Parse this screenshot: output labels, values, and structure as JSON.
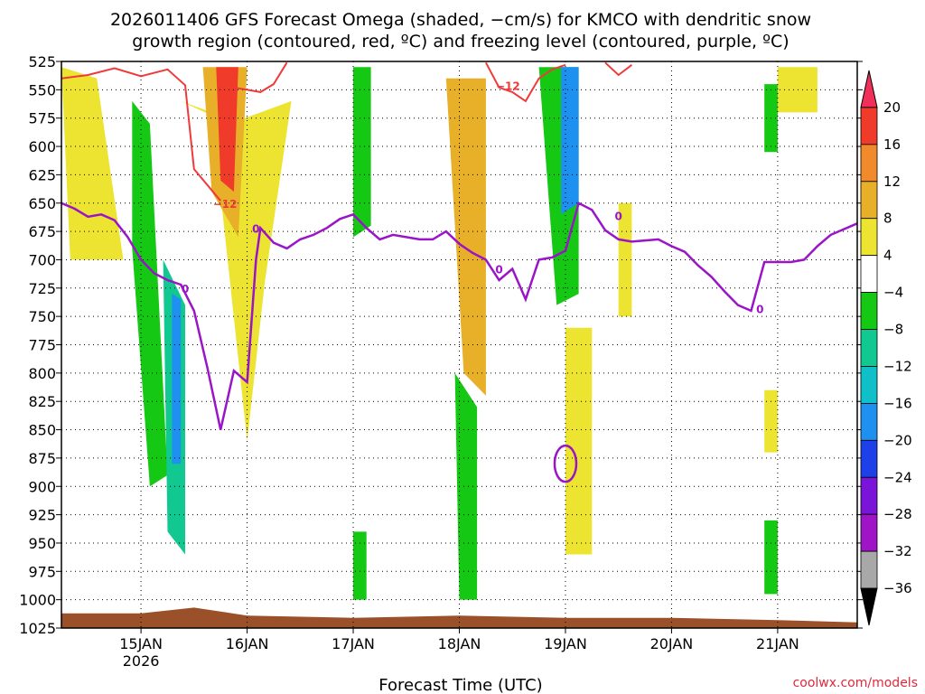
{
  "chart_data": {
    "type": "heatmap",
    "title_lines": [
      "2026011406 GFS Forecast Omega (shaded, −cm/s) for KMCO with dendritic snow",
      "growth region (contoured, red, ºC) and freezing level (contoured, purple, ºC)"
    ],
    "xlabel": "Forecast Time (UTC)",
    "credit": "coolwx.com/models",
    "x_range_days": [
      "2026-01-14T06",
      "2026-01-21T18"
    ],
    "x_ticks": [
      {
        "date": "2026-01-15T00",
        "label": "15JAN",
        "sublabel": "2026"
      },
      {
        "date": "2026-01-16T00",
        "label": "16JAN"
      },
      {
        "date": "2026-01-17T00",
        "label": "17JAN"
      },
      {
        "date": "2026-01-18T00",
        "label": "18JAN"
      },
      {
        "date": "2026-01-19T00",
        "label": "19JAN"
      },
      {
        "date": "2026-01-20T00",
        "label": "20JAN"
      },
      {
        "date": "2026-01-21T00",
        "label": "21JAN"
      }
    ],
    "y_axis_hPa": {
      "range": [
        525,
        1025
      ],
      "inverted": true,
      "ticks": [
        "525",
        "550",
        "575",
        "600",
        "625",
        "650",
        "675",
        "700",
        "725",
        "750",
        "775",
        "800",
        "825",
        "850",
        "875",
        "900",
        "925",
        "950",
        "975",
        "1000",
        "1025"
      ]
    },
    "grid": "dotted",
    "colorbar": {
      "position": "right",
      "labels": [
        "20",
        "16",
        "12",
        "8",
        "4",
        "−4",
        "−8",
        "−12",
        "−16",
        "−20",
        "−24",
        "−28",
        "−32",
        "−36"
      ],
      "colors": [
        "#f0305a",
        "#f03a2a",
        "#f08a2a",
        "#e8b028",
        "#ece430",
        "#ffffff",
        "#14c814",
        "#10c890",
        "#10c0c8",
        "#1e90f0",
        "#1e40e8",
        "#7a14d8",
        "#a014c8",
        "#a8a8a8",
        "#000000"
      ]
    },
    "freezing_level": {
      "label": "0",
      "color": "#9a14c8",
      "points": [
        [
          "2026-01-14T06",
          650
        ],
        [
          "2026-01-14T09",
          655
        ],
        [
          "2026-01-14T12",
          662
        ],
        [
          "2026-01-14T15",
          660
        ],
        [
          "2026-01-14T18",
          665
        ],
        [
          "2026-01-14T21",
          680
        ],
        [
          "2026-01-15T00",
          700
        ],
        [
          "2026-01-15T03",
          712
        ],
        [
          "2026-01-15T06",
          718
        ],
        [
          "2026-01-15T09",
          722
        ],
        [
          "2026-01-15T12",
          745
        ],
        [
          "2026-01-15T15",
          795
        ],
        [
          "2026-01-15T18",
          850
        ],
        [
          "2026-01-15T21",
          798
        ],
        [
          "2026-01-16T00",
          808
        ],
        [
          "2026-01-16T02",
          700
        ],
        [
          "2026-01-16T03",
          672
        ],
        [
          "2026-01-16T06",
          685
        ],
        [
          "2026-01-16T09",
          690
        ],
        [
          "2026-01-16T12",
          682
        ],
        [
          "2026-01-16T15",
          678
        ],
        [
          "2026-01-16T18",
          672
        ],
        [
          "2026-01-16T21",
          664
        ],
        [
          "2026-01-17T00",
          660
        ],
        [
          "2026-01-17T03",
          672
        ],
        [
          "2026-01-17T06",
          682
        ],
        [
          "2026-01-17T09",
          678
        ],
        [
          "2026-01-17T12",
          680
        ],
        [
          "2026-01-17T15",
          682
        ],
        [
          "2026-01-17T18",
          682
        ],
        [
          "2026-01-17T21",
          675
        ],
        [
          "2026-01-18T00",
          686
        ],
        [
          "2026-01-18T03",
          694
        ],
        [
          "2026-01-18T06",
          700
        ],
        [
          "2026-01-18T09",
          718
        ],
        [
          "2026-01-18T12",
          708
        ],
        [
          "2026-01-18T15",
          735
        ],
        [
          "2026-01-18T18",
          700
        ],
        [
          "2026-01-18T21",
          698
        ],
        [
          "2026-01-19T00",
          692
        ],
        [
          "2026-01-19T03",
          650
        ],
        [
          "2026-01-19T06",
          656
        ],
        [
          "2026-01-19T09",
          674
        ],
        [
          "2026-01-19T12",
          682
        ],
        [
          "2026-01-19T15",
          684
        ],
        [
          "2026-01-19T18",
          683
        ],
        [
          "2026-01-19T21",
          682
        ],
        [
          "2026-01-20T00",
          688
        ],
        [
          "2026-01-20T03",
          693
        ],
        [
          "2026-01-20T06",
          705
        ],
        [
          "2026-01-20T09",
          715
        ],
        [
          "2026-01-20T12",
          728
        ],
        [
          "2026-01-20T15",
          740
        ],
        [
          "2026-01-20T18",
          745
        ],
        [
          "2026-01-20T21",
          702
        ],
        [
          "2026-01-21T00",
          702
        ],
        [
          "2026-01-21T03",
          702
        ],
        [
          "2026-01-21T06",
          700
        ],
        [
          "2026-01-21T09",
          688
        ],
        [
          "2026-01-21T12",
          678
        ],
        [
          "2026-01-21T18",
          668
        ]
      ]
    },
    "dgz_contour": {
      "label": "−12",
      "color": "#f03a3a",
      "segments": [
        [
          [
            "2026-01-14T06",
            540
          ],
          [
            "2026-01-14T12",
            537
          ],
          [
            "2026-01-14T18",
            531
          ],
          [
            "2026-01-15T00",
            538
          ],
          [
            "2026-01-15T06",
            532
          ],
          [
            "2026-01-15T10",
            546
          ],
          [
            "2026-01-15T12",
            620
          ],
          [
            "2026-01-15T18",
            648
          ]
        ],
        [
          [
            "2026-01-15T21",
            548
          ],
          [
            "2026-01-16T03",
            552
          ],
          [
            "2026-01-16T06",
            545
          ],
          [
            "2026-01-16T09",
            526
          ]
        ],
        [
          [
            "2026-01-18T06",
            526
          ],
          [
            "2026-01-18T09",
            548
          ],
          [
            "2026-01-18T12",
            552
          ],
          [
            "2026-01-18T15",
            560
          ],
          [
            "2026-01-18T18",
            540
          ],
          [
            "2026-01-18T21",
            532
          ],
          [
            "2026-01-19T00",
            528
          ]
        ],
        [
          [
            "2026-01-19T09",
            526
          ],
          [
            "2026-01-19T12",
            537
          ],
          [
            "2026-01-19T15",
            528
          ]
        ]
      ]
    },
    "omega_regions": [
      {
        "color": "#ece430",
        "pts": [
          [
            "2026-01-14T06",
            530
          ],
          [
            "2026-01-14T14",
            540
          ],
          [
            "2026-01-14T20",
            700
          ],
          [
            "2026-01-14T08",
            700
          ]
        ]
      },
      {
        "color": "#ece430",
        "pts": [
          [
            "2026-01-15T09",
            560
          ],
          [
            "2026-01-15T16",
            570
          ],
          [
            "2026-01-16T00",
            860
          ],
          [
            "2026-01-16T04",
            720
          ],
          [
            "2026-01-16T10",
            560
          ],
          [
            "2026-01-15T20",
            580
          ]
        ]
      },
      {
        "color": "#e8b028",
        "pts": [
          [
            "2026-01-15T14",
            530
          ],
          [
            "2026-01-16T00",
            530
          ],
          [
            "2026-01-15T22",
            680
          ],
          [
            "2026-01-15T16",
            640
          ]
        ]
      },
      {
        "color": "#f03a2a",
        "pts": [
          [
            "2026-01-15T17",
            530
          ],
          [
            "2026-01-15T22",
            530
          ],
          [
            "2026-01-15T21",
            640
          ],
          [
            "2026-01-15T18",
            630
          ]
        ]
      },
      {
        "color": "#14c814",
        "pts": [
          [
            "2026-01-14T22",
            560
          ],
          [
            "2026-01-15T02",
            580
          ],
          [
            "2026-01-15T06",
            890
          ],
          [
            "2026-01-15T02",
            900
          ],
          [
            "2026-01-14T22",
            690
          ]
        ]
      },
      {
        "color": "#10c890",
        "pts": [
          [
            "2026-01-15T05",
            700
          ],
          [
            "2026-01-15T10",
            740
          ],
          [
            "2026-01-15T10",
            960
          ],
          [
            "2026-01-15T06",
            940
          ]
        ]
      },
      {
        "color": "#1e90f0",
        "pts": [
          [
            "2026-01-15T07",
            730
          ],
          [
            "2026-01-15T09",
            735
          ],
          [
            "2026-01-15T09",
            880
          ],
          [
            "2026-01-15T07",
            880
          ]
        ]
      },
      {
        "color": "#14c814",
        "pts": [
          [
            "2026-01-17T00",
            530
          ],
          [
            "2026-01-17T04",
            530
          ],
          [
            "2026-01-17T04",
            670
          ],
          [
            "2026-01-17T00",
            680
          ]
        ]
      },
      {
        "color": "#14c814",
        "pts": [
          [
            "2026-01-17T00",
            940
          ],
          [
            "2026-01-17T03",
            940
          ],
          [
            "2026-01-17T03",
            1000
          ],
          [
            "2026-01-17T00",
            1000
          ]
        ]
      },
      {
        "color": "#e8b028",
        "pts": [
          [
            "2026-01-17T21",
            540
          ],
          [
            "2026-01-18T06",
            540
          ],
          [
            "2026-01-18T06",
            820
          ],
          [
            "2026-01-18T01",
            800
          ]
        ]
      },
      {
        "color": "#14c814",
        "pts": [
          [
            "2026-01-17T23",
            800
          ],
          [
            "2026-01-18T04",
            830
          ],
          [
            "2026-01-18T04",
            1000
          ],
          [
            "2026-01-18T00",
            1000
          ]
        ]
      },
      {
        "color": "#14c814",
        "pts": [
          [
            "2026-01-18T18",
            530
          ],
          [
            "2026-01-19T03",
            530
          ],
          [
            "2026-01-19T03",
            730
          ],
          [
            "2026-01-18T22",
            740
          ]
        ]
      },
      {
        "color": "#1e90f0",
        "pts": [
          [
            "2026-01-18T23",
            530
          ],
          [
            "2026-01-19T03",
            530
          ],
          [
            "2026-01-19T03",
            650
          ],
          [
            "2026-01-18T23",
            660
          ]
        ]
      },
      {
        "color": "#ece430",
        "pts": [
          [
            "2026-01-19T00",
            760
          ],
          [
            "2026-01-19T06",
            760
          ],
          [
            "2026-01-19T06",
            960
          ],
          [
            "2026-01-19T00",
            960
          ]
        ]
      },
      {
        "color": "#ece430",
        "pts": [
          [
            "2026-01-19T12",
            650
          ],
          [
            "2026-01-19T15",
            650
          ],
          [
            "2026-01-19T15",
            750
          ],
          [
            "2026-01-19T12",
            750
          ]
        ]
      },
      {
        "color": "#ece430",
        "pts": [
          [
            "2026-01-21T00",
            530
          ],
          [
            "2026-01-21T09",
            530
          ],
          [
            "2026-01-21T09",
            570
          ],
          [
            "2026-01-21T00",
            570
          ]
        ]
      },
      {
        "color": "#14c814",
        "pts": [
          [
            "2026-01-20T21",
            545
          ],
          [
            "2026-01-21T00",
            545
          ],
          [
            "2026-01-21T00",
            605
          ],
          [
            "2026-01-20T21",
            605
          ]
        ]
      },
      {
        "color": "#ece430",
        "pts": [
          [
            "2026-01-20T21",
            815
          ],
          [
            "2026-01-21T00",
            815
          ],
          [
            "2026-01-21T00",
            870
          ],
          [
            "2026-01-20T21",
            870
          ]
        ]
      },
      {
        "color": "#14c814",
        "pts": [
          [
            "2026-01-20T21",
            930
          ],
          [
            "2026-01-21T00",
            930
          ],
          [
            "2026-01-21T00",
            995
          ],
          [
            "2026-01-20T21",
            995
          ]
        ]
      }
    ],
    "terrain": {
      "color": "#9a5028",
      "points": [
        [
          "2026-01-14T06",
          1012
        ],
        [
          "2026-01-15T00",
          1012
        ],
        [
          "2026-01-15T12",
          1007
        ],
        [
          "2026-01-16T00",
          1014
        ],
        [
          "2026-01-17T00",
          1016
        ],
        [
          "2026-01-18T00",
          1014
        ],
        [
          "2026-01-19T00",
          1016
        ],
        [
          "2026-01-20T00",
          1016
        ],
        [
          "2026-01-21T00",
          1018
        ],
        [
          "2026-01-21T18",
          1020
        ]
      ]
    }
  }
}
